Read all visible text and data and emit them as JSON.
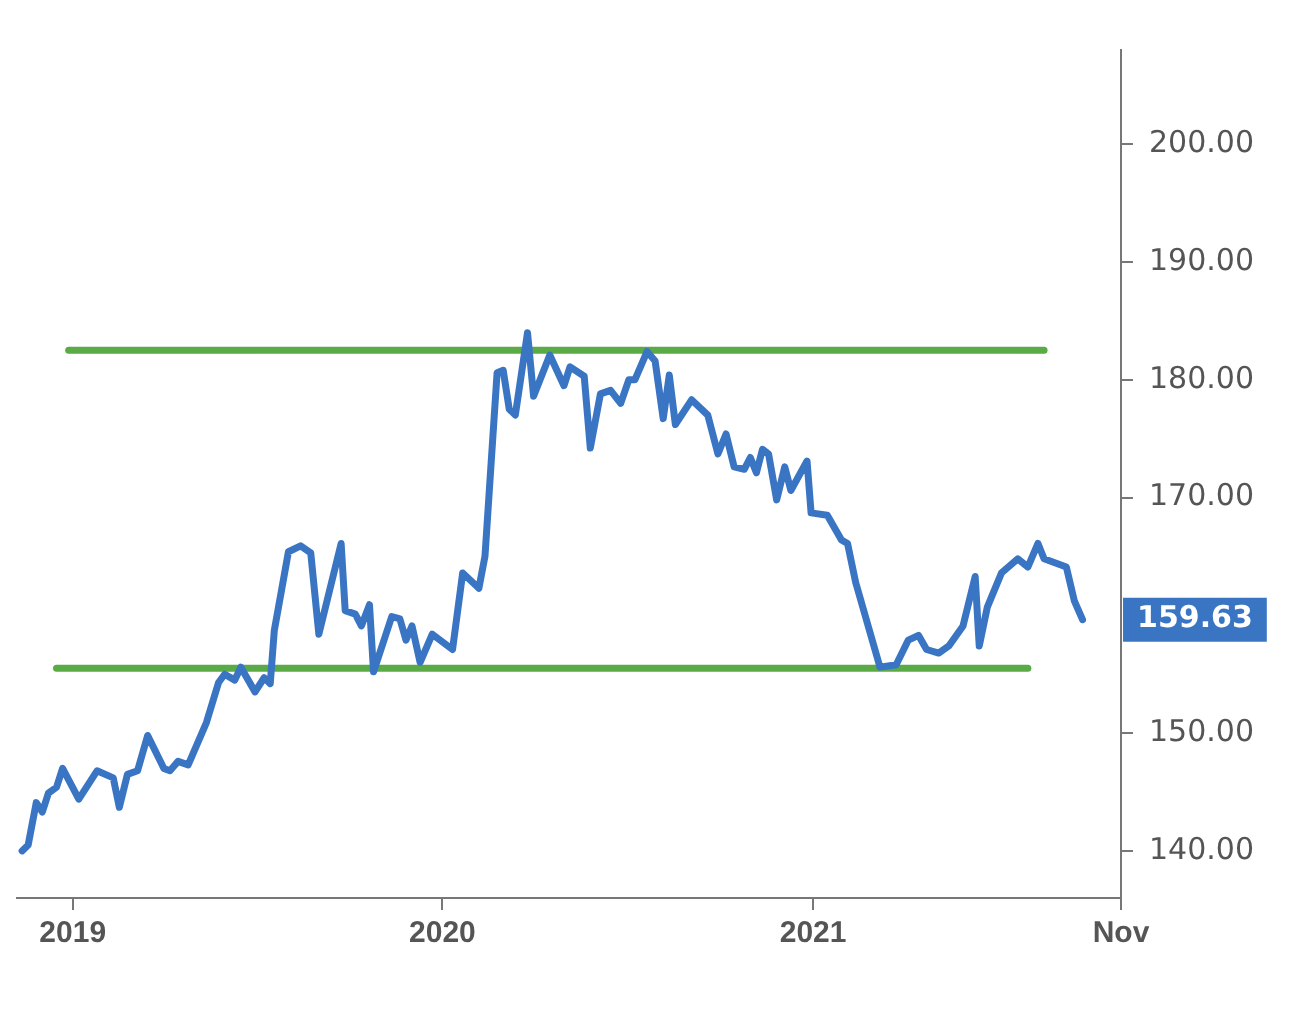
{
  "chart_data": {
    "type": "line",
    "legend": false,
    "grid": false,
    "marker": "none",
    "line_style": "solid",
    "xlim": [
      "2018-11-06",
      "2021-11-01"
    ],
    "xticks": [
      {
        "value": "2019-01-01",
        "label": "2019"
      },
      {
        "value": "2020-01-01",
        "label": "2020"
      },
      {
        "value": "2021-01-01",
        "label": "2021"
      },
      {
        "value": "2021-11-01",
        "label": "Nov"
      }
    ],
    "ylim": [
      136,
      208
    ],
    "yticks": [
      {
        "value": 140,
        "label": "140.00"
      },
      {
        "value": 150,
        "label": "150.00"
      },
      {
        "value": 170,
        "label": "170.00"
      },
      {
        "value": 180,
        "label": "180.00"
      },
      {
        "value": 190,
        "label": "190.00"
      },
      {
        "value": 200,
        "label": "200.00"
      }
    ],
    "annotations": [
      {
        "text": "159.63",
        "x": "2021-09-24",
        "y": 159.63
      }
    ],
    "series": [
      {
        "color": "#3a75c4",
        "x": [
          "2018-11-12",
          "2018-11-18",
          "2018-11-26",
          "2018-12-02",
          "2018-12-08",
          "2018-12-16",
          "2018-12-22",
          "2019-01-07",
          "2019-01-25",
          "2019-02-10",
          "2019-02-16",
          "2019-02-24",
          "2019-03-06",
          "2019-03-16",
          "2019-04-01",
          "2019-04-07",
          "2019-04-15",
          "2019-04-25",
          "2019-05-13",
          "2019-05-25",
          "2019-05-31",
          "2019-06-10",
          "2019-06-16",
          "2019-06-30",
          "2019-07-09",
          "2019-07-15",
          "2019-07-19",
          "2019-08-02",
          "2019-08-14",
          "2019-08-24",
          "2019-09-01",
          "2019-09-23",
          "2019-09-27",
          "2019-10-07",
          "2019-10-13",
          "2019-10-21",
          "2019-10-25",
          "2019-11-12",
          "2019-11-20",
          "2019-11-26",
          "2019-12-02",
          "2019-12-10",
          "2019-12-22",
          "2020-01-11",
          "2020-01-21",
          "2020-02-06",
          "2020-02-12",
          "2020-02-24",
          "2020-03-01",
          "2020-03-07",
          "2020-03-13",
          "2020-03-25",
          "2020-03-31",
          "2020-04-16",
          "2020-04-30",
          "2020-05-06",
          "2020-05-20",
          "2020-05-26",
          "2020-06-05",
          "2020-06-15",
          "2020-06-25",
          "2020-07-03",
          "2020-07-09",
          "2020-07-21",
          "2020-07-29",
          "2020-08-06",
          "2020-08-12",
          "2020-08-18",
          "2020-09-03",
          "2020-09-19",
          "2020-09-29",
          "2020-10-07",
          "2020-10-15",
          "2020-10-25",
          "2020-10-31",
          "2020-11-06",
          "2020-11-12",
          "2020-11-18",
          "2020-11-26",
          "2020-12-04",
          "2020-12-10",
          "2020-12-26",
          "2020-12-30",
          "2021-01-15",
          "2021-01-29",
          "2021-02-04",
          "2021-02-12",
          "2021-03-08",
          "2021-03-24",
          "2021-04-05",
          "2021-04-15",
          "2021-04-23",
          "2021-05-05",
          "2021-05-15",
          "2021-05-29",
          "2021-06-10",
          "2021-06-14",
          "2021-06-22",
          "2021-07-06",
          "2021-07-22",
          "2021-08-01",
          "2021-08-11",
          "2021-08-17",
          "2021-09-08",
          "2021-09-16",
          "2021-09-24"
        ],
        "values": [
          140.0,
          140.5,
          144.1,
          143.3,
          144.9,
          145.4,
          147.0,
          144.4,
          146.8,
          146.2,
          143.7,
          146.5,
          146.8,
          149.8,
          147.0,
          146.8,
          147.6,
          147.3,
          150.9,
          154.3,
          155.0,
          154.5,
          155.6,
          153.5,
          154.7,
          154.2,
          158.7,
          165.4,
          165.9,
          165.3,
          158.4,
          166.1,
          160.4,
          160.1,
          159.1,
          160.9,
          155.2,
          159.9,
          159.7,
          157.9,
          159.1,
          156.0,
          158.4,
          157.1,
          163.6,
          162.3,
          165.0,
          180.6,
          180.8,
          177.5,
          177.0,
          184.0,
          178.6,
          182.1,
          179.5,
          181.1,
          180.3,
          174.2,
          178.8,
          179.1,
          178.0,
          180.0,
          180.0,
          182.4,
          181.6,
          176.7,
          180.4,
          176.2,
          178.3,
          177.0,
          173.7,
          175.4,
          172.6,
          172.4,
          173.4,
          172.1,
          174.1,
          173.7,
          169.8,
          172.6,
          170.6,
          173.1,
          168.7,
          168.5,
          166.4,
          166.1,
          162.8,
          155.6,
          155.8,
          157.9,
          158.3,
          157.1,
          156.8,
          157.4,
          159.1,
          163.3,
          157.4,
          160.7,
          163.6,
          164.8,
          164.1,
          166.1,
          164.8,
          164.1,
          161.2,
          159.63
        ]
      },
      {
        "color": "#5aaa46",
        "x": [
          "2018-12-28",
          "2021-08-17"
        ],
        "values": [
          182.5,
          182.5
        ]
      },
      {
        "color": "#5aaa46",
        "x": [
          "2018-12-16",
          "2021-08-01"
        ],
        "values": [
          155.5,
          155.5
        ]
      }
    ]
  }
}
